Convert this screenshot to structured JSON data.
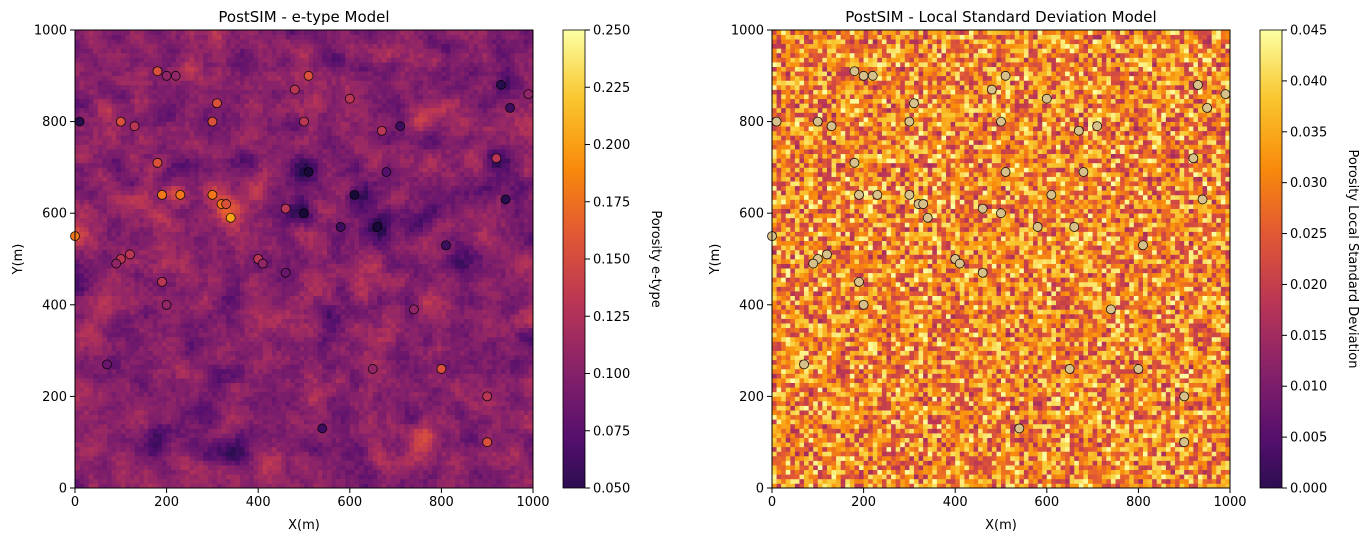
{
  "chart_data": [
    {
      "type": "heatmap",
      "title": "PostSIM - e-type Model",
      "xlabel": "X(m)",
      "ylabel": "Y(m)",
      "xlim": [
        0,
        1000
      ],
      "ylim": [
        0,
        1000
      ],
      "xticks": [
        "0",
        "200",
        "400",
        "600",
        "800",
        "1000"
      ],
      "yticks": [
        "0",
        "200",
        "400",
        "600",
        "800",
        "1000"
      ],
      "grid": false,
      "grid_resolution": 100,
      "colormap": "inferno",
      "colorbar": {
        "label": "Porosity e-type",
        "range": [
          0.05,
          0.25
        ],
        "ticks": [
          "0.050",
          "0.075",
          "0.100",
          "0.125",
          "0.150",
          "0.175",
          "0.200",
          "0.225",
          "0.250"
        ]
      },
      "base_value": 0.125,
      "variation": 0.025,
      "hotspots": [
        {
          "x": 330,
          "y": 600,
          "delta": 0.06
        },
        {
          "x": 310,
          "y": 650,
          "delta": 0.03
        },
        {
          "x": 220,
          "y": 640,
          "delta": 0.03
        },
        {
          "x": 760,
          "y": 110,
          "delta": 0.04
        },
        {
          "x": 0,
          "y": 550,
          "delta": 0.04
        },
        {
          "x": 620,
          "y": 640,
          "delta": -0.045
        },
        {
          "x": 660,
          "y": 570,
          "delta": -0.05
        },
        {
          "x": 500,
          "y": 600,
          "delta": -0.045
        },
        {
          "x": 510,
          "y": 690,
          "delta": -0.04
        },
        {
          "x": 940,
          "y": 720,
          "delta": -0.04
        },
        {
          "x": 180,
          "y": 100,
          "delta": -0.035
        },
        {
          "x": 350,
          "y": 80,
          "delta": -0.035
        },
        {
          "x": 950,
          "y": 880,
          "delta": -0.03
        }
      ],
      "wells": [
        {
          "x": 180,
          "y": 910,
          "value": 0.17
        },
        {
          "x": 200,
          "y": 900,
          "value": 0.13
        },
        {
          "x": 220,
          "y": 900,
          "value": 0.13
        },
        {
          "x": 510,
          "y": 900,
          "value": 0.17
        },
        {
          "x": 480,
          "y": 870,
          "value": 0.15
        },
        {
          "x": 930,
          "y": 880,
          "value": 0.08
        },
        {
          "x": 990,
          "y": 860,
          "value": 0.13
        },
        {
          "x": 600,
          "y": 850,
          "value": 0.15
        },
        {
          "x": 310,
          "y": 840,
          "value": 0.17
        },
        {
          "x": 950,
          "y": 830,
          "value": 0.09
        },
        {
          "x": 10,
          "y": 800,
          "value": 0.08
        },
        {
          "x": 100,
          "y": 800,
          "value": 0.17
        },
        {
          "x": 300,
          "y": 800,
          "value": 0.17
        },
        {
          "x": 500,
          "y": 800,
          "value": 0.15
        },
        {
          "x": 130,
          "y": 790,
          "value": 0.15
        },
        {
          "x": 710,
          "y": 790,
          "value": 0.09
        },
        {
          "x": 670,
          "y": 780,
          "value": 0.15
        },
        {
          "x": 920,
          "y": 720,
          "value": 0.15
        },
        {
          "x": 180,
          "y": 710,
          "value": 0.17
        },
        {
          "x": 510,
          "y": 690,
          "value": 0.07
        },
        {
          "x": 680,
          "y": 690,
          "value": 0.1
        },
        {
          "x": 190,
          "y": 640,
          "value": 0.19
        },
        {
          "x": 230,
          "y": 640,
          "value": 0.19
        },
        {
          "x": 300,
          "y": 640,
          "value": 0.19
        },
        {
          "x": 610,
          "y": 640,
          "value": 0.07
        },
        {
          "x": 940,
          "y": 630,
          "value": 0.08
        },
        {
          "x": 320,
          "y": 620,
          "value": 0.19
        },
        {
          "x": 330,
          "y": 620,
          "value": 0.17
        },
        {
          "x": 460,
          "y": 610,
          "value": 0.15
        },
        {
          "x": 500,
          "y": 600,
          "value": 0.07
        },
        {
          "x": 340,
          "y": 590,
          "value": 0.21
        },
        {
          "x": 580,
          "y": 570,
          "value": 0.09
        },
        {
          "x": 660,
          "y": 570,
          "value": 0.07
        },
        {
          "x": 0,
          "y": 550,
          "value": 0.19
        },
        {
          "x": 810,
          "y": 530,
          "value": 0.09
        },
        {
          "x": 120,
          "y": 510,
          "value": 0.15
        },
        {
          "x": 100,
          "y": 500,
          "value": 0.15
        },
        {
          "x": 400,
          "y": 500,
          "value": 0.15
        },
        {
          "x": 90,
          "y": 490,
          "value": 0.13
        },
        {
          "x": 410,
          "y": 490,
          "value": 0.13
        },
        {
          "x": 460,
          "y": 470,
          "value": 0.11
        },
        {
          "x": 190,
          "y": 450,
          "value": 0.15
        },
        {
          "x": 200,
          "y": 400,
          "value": 0.13
        },
        {
          "x": 740,
          "y": 390,
          "value": 0.13
        },
        {
          "x": 70,
          "y": 270,
          "value": 0.11
        },
        {
          "x": 650,
          "y": 260,
          "value": 0.13
        },
        {
          "x": 800,
          "y": 260,
          "value": 0.17
        },
        {
          "x": 900,
          "y": 200,
          "value": 0.15
        },
        {
          "x": 540,
          "y": 130,
          "value": 0.09
        },
        {
          "x": 900,
          "y": 100,
          "value": 0.17
        }
      ]
    },
    {
      "type": "heatmap",
      "title": "PostSIM - Local Standard Deviation Model",
      "xlabel": "X(m)",
      "ylabel": "Y(m)",
      "xlim": [
        0,
        1000
      ],
      "ylim": [
        0,
        1000
      ],
      "xticks": [
        "0",
        "200",
        "400",
        "600",
        "800",
        "1000"
      ],
      "yticks": [
        "0",
        "200",
        "400",
        "600",
        "800",
        "1000"
      ],
      "grid": false,
      "grid_resolution": 100,
      "colormap": "inferno",
      "colorbar": {
        "label": "Porosity Local Standard Deviation",
        "range": [
          0.0,
          0.045
        ],
        "ticks": [
          "0.000",
          "0.005",
          "0.010",
          "0.015",
          "0.020",
          "0.025",
          "0.030",
          "0.035",
          "0.040",
          "0.045"
        ]
      },
      "base_value": 0.033,
      "variation": 0.011,
      "well_marker_value": 0.045
    }
  ]
}
